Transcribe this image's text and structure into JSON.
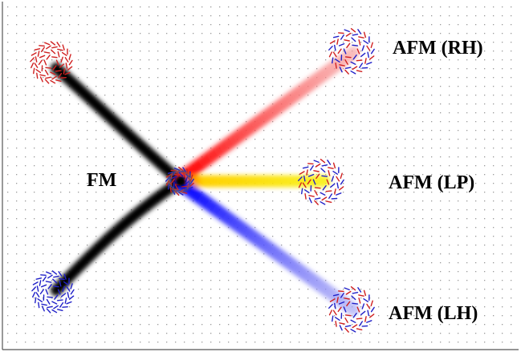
{
  "labels": {
    "fm": "FM",
    "afm_rh": "AFM (RH)",
    "afm_lp": "AFM (LP)",
    "afm_lh": "AFM (LH)"
  },
  "colors": {
    "fm_path": "#000000",
    "rh_path": "#f07070",
    "lp_path": "#f4f000",
    "lh_path": "#6a6af0",
    "spin_red": "#d02020",
    "spin_blue": "#2020c8",
    "grid_dot": "#9a9a9a"
  }
}
